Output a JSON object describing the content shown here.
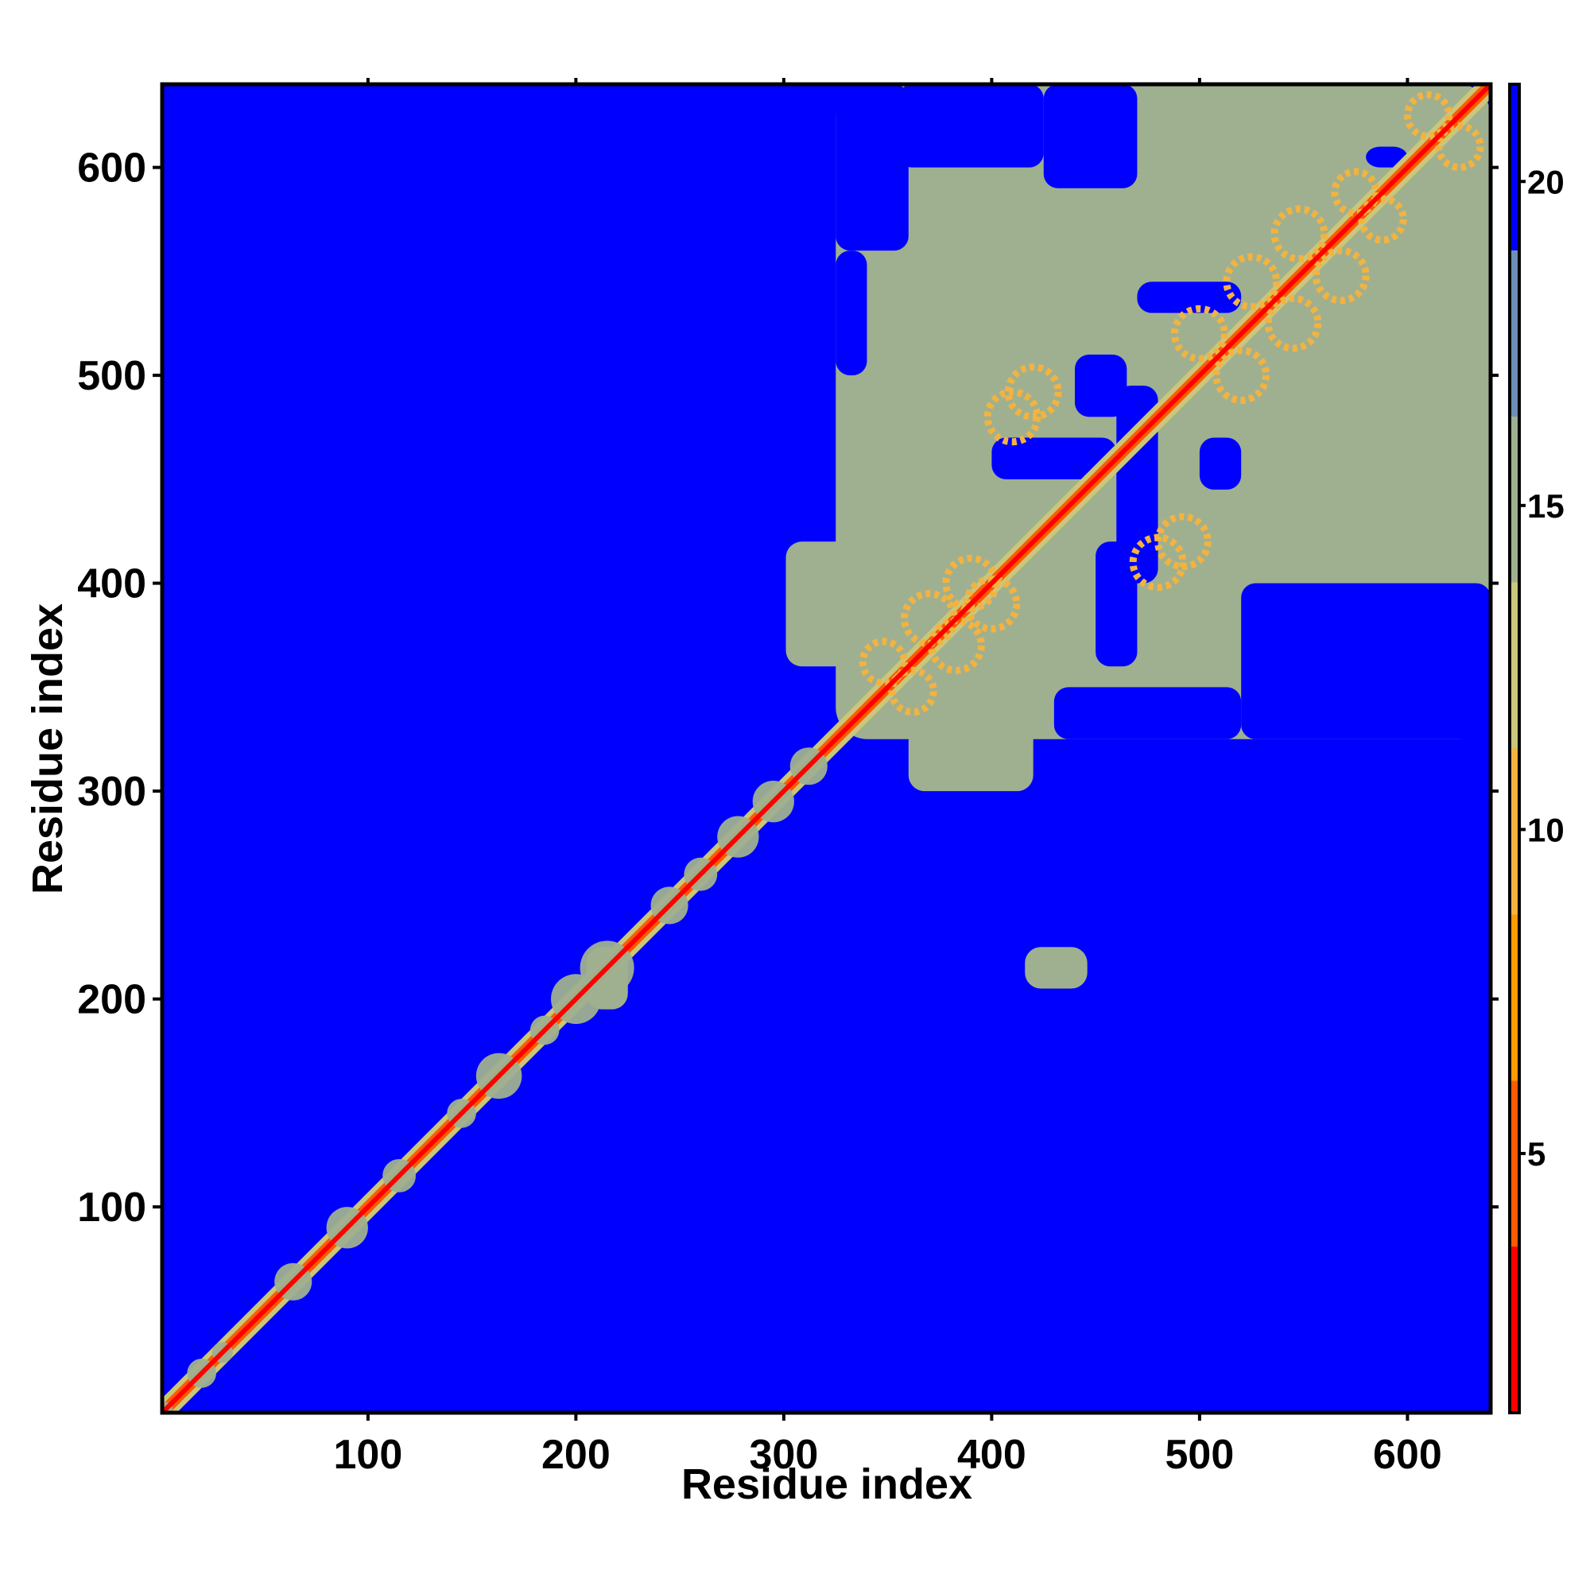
{
  "chart_data": {
    "type": "heatmap",
    "title": "",
    "xlabel": "Residue index",
    "ylabel": "Residue index",
    "xlim": [
      1,
      640
    ],
    "ylim": [
      1,
      640
    ],
    "x_ticks": [
      100,
      200,
      300,
      400,
      500,
      600
    ],
    "y_ticks": [
      100,
      200,
      300,
      400,
      500,
      600
    ],
    "x_tick_labels": [
      "100",
      "200",
      "300",
      "400",
      "500",
      "600"
    ],
    "y_tick_labels": [
      "100",
      "200",
      "300",
      "400",
      "500",
      "600"
    ],
    "colorbar": {
      "range": [
        1,
        21.5
      ],
      "ticks": [
        5,
        10,
        15,
        20
      ],
      "tick_labels": [
        "5",
        "10",
        "15",
        "20"
      ],
      "colors": [
        "#ff0000",
        "#ff5a00",
        "#ff9a00",
        "#f2b341",
        "#c9c77a",
        "#9fb090",
        "#6b8fb5",
        "#0000ff"
      ]
    },
    "background_value": 21,
    "background_color": "#0000ff",
    "diagonal": {
      "from": 1,
      "to": 640,
      "value": 2,
      "color": "#ff0000"
    },
    "diagonal_halo_value": 13,
    "contact_regions": [
      {
        "x": [
          325,
          640
        ],
        "y": [
          325,
          640
        ],
        "value": 16
      }
    ],
    "local_blobs": [
      {
        "center": 3,
        "radius": 3,
        "value": 16
      },
      {
        "center": 20,
        "radius": 7,
        "value": 16
      },
      {
        "center": 30,
        "radius": 5,
        "value": 16
      },
      {
        "center": 64,
        "radius": 9,
        "value": 16
      },
      {
        "center": 90,
        "radius": 10,
        "value": 16
      },
      {
        "center": 115,
        "radius": 8,
        "value": 16
      },
      {
        "center": 145,
        "radius": 7,
        "value": 16
      },
      {
        "center": 163,
        "radius": 11,
        "value": 16
      },
      {
        "center": 185,
        "radius": 7,
        "value": 16
      },
      {
        "center": 200,
        "radius": 12,
        "value": 16
      },
      {
        "center": 215,
        "radius": 13,
        "value": 16
      },
      {
        "center": 245,
        "radius": 9,
        "value": 16
      },
      {
        "center": 260,
        "radius": 8,
        "value": 16
      },
      {
        "center": 278,
        "radius": 10,
        "value": 16
      },
      {
        "center": 295,
        "radius": 10,
        "value": 16
      },
      {
        "center": 312,
        "radius": 9,
        "value": 16
      }
    ],
    "domain_pockets": [
      {
        "x": [
          360,
          420
        ],
        "y": [
          300,
          340
        ],
        "value": 16
      },
      {
        "x": [
          205,
          225
        ],
        "y": [
          195,
          225
        ],
        "value": 16
      }
    ],
    "blue_holes": [
      {
        "x": [
          460,
          480
        ],
        "y": [
          400,
          495
        ],
        "value": 21
      },
      {
        "x": [
          400,
          460
        ],
        "y": [
          450,
          470
        ],
        "value": 21
      },
      {
        "x": [
          500,
          520
        ],
        "y": [
          445,
          470
        ],
        "value": 21
      },
      {
        "x": [
          450,
          470
        ],
        "y": [
          360,
          420
        ],
        "value": 21
      },
      {
        "x": [
          470,
          520
        ],
        "y": [
          530,
          545
        ],
        "value": 21
      },
      {
        "x": [
          440,
          465
        ],
        "y": [
          480,
          510
        ],
        "value": 21
      },
      {
        "x": [
          580,
          600
        ],
        "y": [
          600,
          610
        ],
        "value": 21
      },
      {
        "x": [
          520,
          640
        ],
        "y": [
          325,
          400
        ],
        "value": 21
      },
      {
        "x": [
          430,
          520
        ],
        "y": [
          325,
          350
        ],
        "value": 21
      },
      {
        "x": [
          325,
          360
        ],
        "y": [
          560,
          640
        ],
        "value": 21
      },
      {
        "x": [
          355,
          425
        ],
        "y": [
          600,
          640
        ],
        "value": 21
      },
      {
        "x": [
          425,
          470
        ],
        "y": [
          590,
          640
        ],
        "value": 21
      },
      {
        "x": [
          325,
          340
        ],
        "y": [
          500,
          560
        ],
        "value": 21
      }
    ],
    "ring_motifs": [
      {
        "cx": 348,
        "cy": 362,
        "r": 10,
        "value": 10
      },
      {
        "cx": 370,
        "cy": 383,
        "r": 12,
        "value": 10
      },
      {
        "cx": 390,
        "cy": 400,
        "r": 12,
        "value": 10
      },
      {
        "cx": 420,
        "cy": 492,
        "r": 12,
        "value": 10
      },
      {
        "cx": 480,
        "cy": 410,
        "r": 12,
        "value": 10
      },
      {
        "cx": 500,
        "cy": 520,
        "r": 12,
        "value": 10
      },
      {
        "cx": 525,
        "cy": 545,
        "r": 12,
        "value": 10
      },
      {
        "cx": 548,
        "cy": 568,
        "r": 12,
        "value": 10
      },
      {
        "cx": 575,
        "cy": 588,
        "r": 10,
        "value": 10
      },
      {
        "cx": 610,
        "cy": 625,
        "r": 10,
        "value": 10
      }
    ]
  }
}
